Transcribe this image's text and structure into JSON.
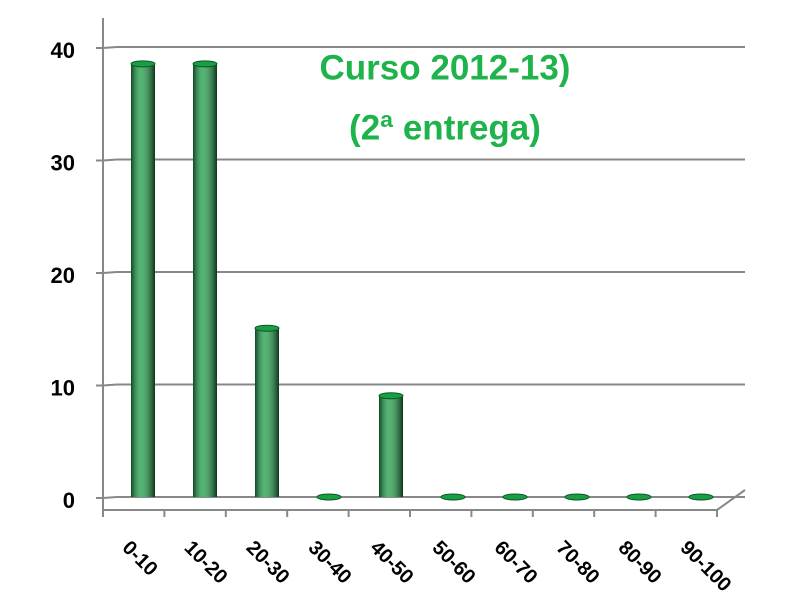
{
  "chart_data": {
    "type": "bar",
    "title": [
      "Curso 2012-13)",
      "(2ª entrega)"
    ],
    "categories": [
      "0-10",
      "10-20",
      "20-30",
      "30-40",
      "40-50",
      "50-60",
      "60-70",
      "70-80",
      "80-90",
      "90-100"
    ],
    "values": [
      38.5,
      38.5,
      15,
      0,
      9,
      0,
      0,
      0,
      0,
      0
    ],
    "color": "#1a9e45",
    "ylim": [
      0,
      40
    ],
    "yticks": [
      0,
      10,
      20,
      30,
      40
    ],
    "grid": true
  }
}
